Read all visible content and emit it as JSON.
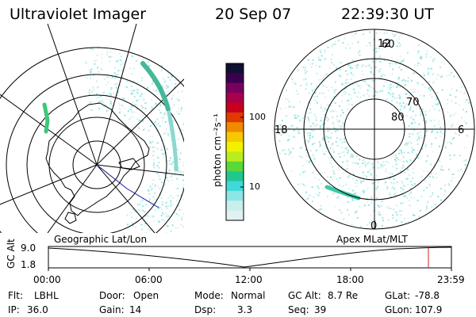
{
  "header": {
    "title": "Ultraviolet Imager",
    "date": "20 Sep 07",
    "time": "22:39:30 UT"
  },
  "colorbar": {
    "label": "photon cm⁻²s⁻¹",
    "ticks": [
      "100",
      "10"
    ],
    "colors": [
      "#101030",
      "#3a0050",
      "#7a0060",
      "#a8004a",
      "#c8001e",
      "#e03a00",
      "#f08a00",
      "#f6c800",
      "#f2f200",
      "#b8ee20",
      "#5ad838",
      "#20c890",
      "#40d8d8",
      "#8ce6e6",
      "#c8eeee",
      "#e2f0f0"
    ]
  },
  "left_map": {
    "caption": "Geographic Lat/Lon",
    "aurora_color": "#38c8a0"
  },
  "right_map": {
    "caption": "Apex MLat/MLT",
    "lat_labels": [
      "60",
      "70",
      "80"
    ],
    "mlt_labels": [
      "12",
      "18",
      "6",
      "0"
    ]
  },
  "altitude_panel": {
    "ylabel": "GC Alt",
    "yticks": [
      "9.0",
      "1.8"
    ],
    "xticks": [
      "00:00",
      "06:00",
      "12:00",
      "18:00",
      "23:59"
    ],
    "current_marker_color": "#d02020"
  },
  "footer": {
    "row1": [
      {
        "label": "Flt:",
        "value": "LBHL"
      },
      {
        "label": "Door:",
        "value": "Open"
      },
      {
        "label": "Mode:",
        "value": "Normal"
      },
      {
        "label": "GC Alt:",
        "value": "8.7 Re"
      },
      {
        "label": "GLat:",
        "value": "-78.8"
      }
    ],
    "row2": [
      {
        "label": "IP:",
        "value": "36.0"
      },
      {
        "label": "Gain:",
        "value": "14"
      },
      {
        "label": "Dsp:",
        "value": "3.3"
      },
      {
        "label": "Seq:",
        "value": "39"
      },
      {
        "label": "GLon:",
        "value": "107.9"
      }
    ]
  }
}
